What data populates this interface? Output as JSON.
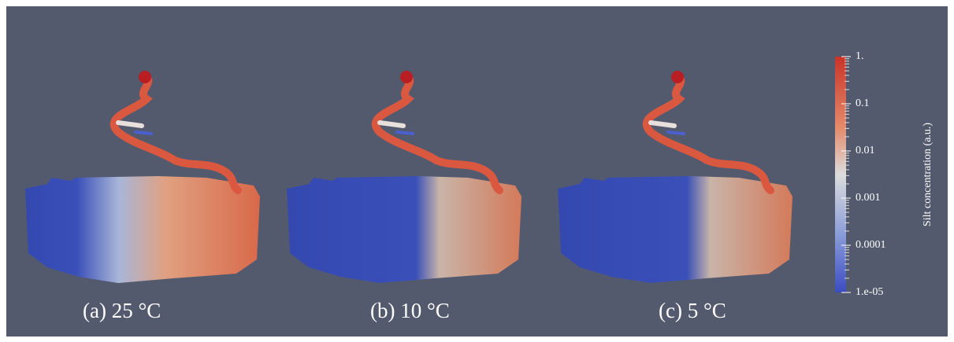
{
  "panels": [
    {
      "label": "(a)  25 °C"
    },
    {
      "label": "(b)  10 °C"
    },
    {
      "label": "(c)  5 °C"
    }
  ],
  "colorbar": {
    "title": "Silt concentration (a.u.)",
    "tick_labels": [
      "1.",
      "0.1",
      "0.01",
      "0.001",
      "0.0001",
      "1.e-05"
    ]
  }
}
